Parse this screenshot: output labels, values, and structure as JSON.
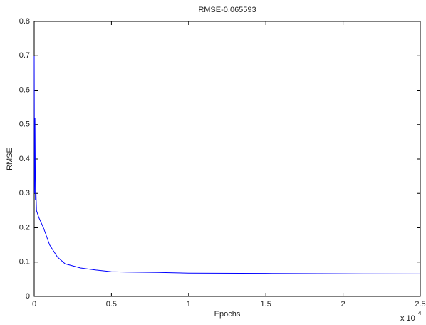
{
  "chart_data": {
    "type": "line",
    "title": "RMSE-0.065593",
    "xlabel": "Epochs",
    "ylabel": "RMSE",
    "x_multiplier": "x 10",
    "x_multiplier_exponent": "4",
    "x": [
      0,
      0.002,
      0.005,
      0.008,
      0.01,
      0.015,
      0.03,
      0.06,
      0.1,
      0.15,
      0.2,
      0.3,
      0.4,
      0.5,
      0.6,
      0.8,
      1.0,
      1.5,
      2.0,
      2.5
    ],
    "series": [
      {
        "name": "RMSE",
        "color": "#0000ff",
        "values": [
          0.7,
          0.3,
          0.52,
          0.28,
          0.33,
          0.25,
          0.23,
          0.2,
          0.15,
          0.115,
          0.095,
          0.083,
          0.077,
          0.072,
          0.071,
          0.07,
          0.068,
          0.067,
          0.066,
          0.0656
        ]
      }
    ],
    "xlim": [
      0,
      2.5
    ],
    "ylim": [
      0,
      0.8
    ],
    "xticks": [
      0,
      0.5,
      1,
      1.5,
      2,
      2.5
    ],
    "yticks": [
      0,
      0.1,
      0.2,
      0.3,
      0.4,
      0.5,
      0.6,
      0.7,
      0.8
    ],
    "grid": false
  }
}
